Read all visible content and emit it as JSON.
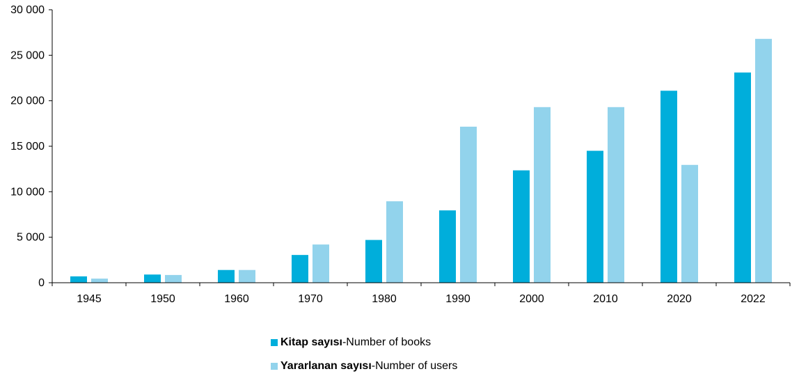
{
  "chart_data": {
    "type": "bar",
    "categories": [
      "1945",
      "1950",
      "1960",
      "1970",
      "1980",
      "1990",
      "2000",
      "2010",
      "2020",
      "2022"
    ],
    "series": [
      {
        "name": "Kitap sayısı-Number of books",
        "name_bold": "Kitap sayısı",
        "name_rest": "-Number of books",
        "color": "#00AEDB",
        "values": [
          700,
          900,
          1400,
          3050,
          4700,
          7950,
          12350,
          14500,
          21100,
          23100
        ]
      },
      {
        "name": "Yararlanan sayısı-Number of users",
        "name_bold": "Yararlanan sayısı",
        "name_rest": "-Number of users",
        "color": "#92D3EC",
        "values": [
          450,
          850,
          1400,
          4200,
          8950,
          17150,
          19300,
          19300,
          12950,
          26800
        ]
      }
    ],
    "y_ticks": [
      0,
      5000,
      10000,
      15000,
      20000,
      25000,
      30000
    ],
    "y_tick_labels": [
      "0",
      "5 000",
      "10 000",
      "15 000",
      "20 000",
      "25 000",
      "30 000"
    ],
    "ylim": [
      0,
      30000
    ],
    "title": "",
    "xlabel": "",
    "ylabel": "",
    "grid": false,
    "legend_position": "bottom-center"
  }
}
